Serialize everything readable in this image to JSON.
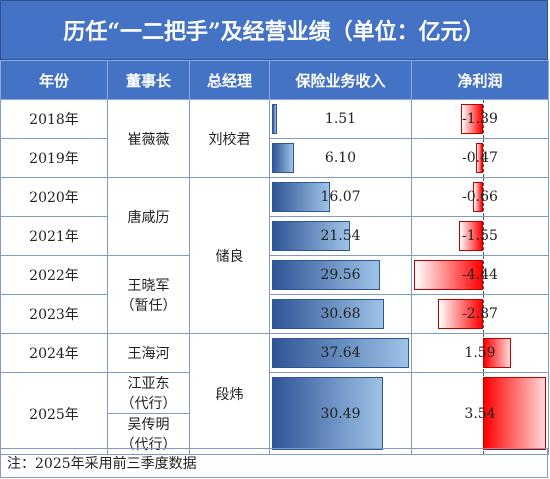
{
  "title": "历任“一二把手”及经营业绩（单位：亿元）",
  "headers": [
    "年份",
    "董事长",
    "总经理",
    "保险业务收入",
    "净利润"
  ],
  "rows": [
    {
      "year": "2018年",
      "revenue": "1.51",
      "rev_value": 1.51,
      "profit": "-1.39",
      "profit_value": -1.39
    },
    {
      "year": "2019年",
      "revenue": "6.10",
      "rev_value": 6.1,
      "profit": "-0.47",
      "profit_value": -0.47
    },
    {
      "year": "2020年",
      "revenue": "16.07",
      "rev_value": 16.07,
      "profit": "-0.66",
      "profit_value": -0.66
    },
    {
      "year": "2021年",
      "revenue": "21.54",
      "rev_value": 21.54,
      "profit": "-1.55",
      "profit_value": -1.55
    },
    {
      "year": "2022年",
      "revenue": "29.56",
      "rev_value": 29.56,
      "profit": "-4.44",
      "profit_value": -4.44
    },
    {
      "year": "2023年",
      "revenue": "30.68",
      "rev_value": 30.68,
      "profit": "-2.87",
      "profit_value": -2.87
    },
    {
      "year": "2024年",
      "revenue": "37.64",
      "rev_value": 37.64,
      "profit": "1.59",
      "profit_value": 1.59
    },
    {
      "year": "2025年",
      "revenue": "30.49",
      "rev_value": 30.49,
      "profit": "3.54",
      "profit_value": 3.54
    }
  ],
  "chairmen": {
    "c1": "崔薇薇",
    "c2": "唐咸历",
    "c3_line1": "王晓军",
    "c3_line2": "（暂任）",
    "c4": "王海河",
    "c5_line1": "江亚东",
    "c5_line2": "（代行）",
    "c6_line1": "吴传明",
    "c6_line2": "（代行）"
  },
  "managers": {
    "m1": "刘校君",
    "m2": "储良",
    "m3": "段炜"
  },
  "note": "注：2025年采用前三季度数据",
  "colors": {
    "header": "#4472c4",
    "revenue_bar": "#2f5597",
    "profit_bar": "#ff0000"
  }
}
